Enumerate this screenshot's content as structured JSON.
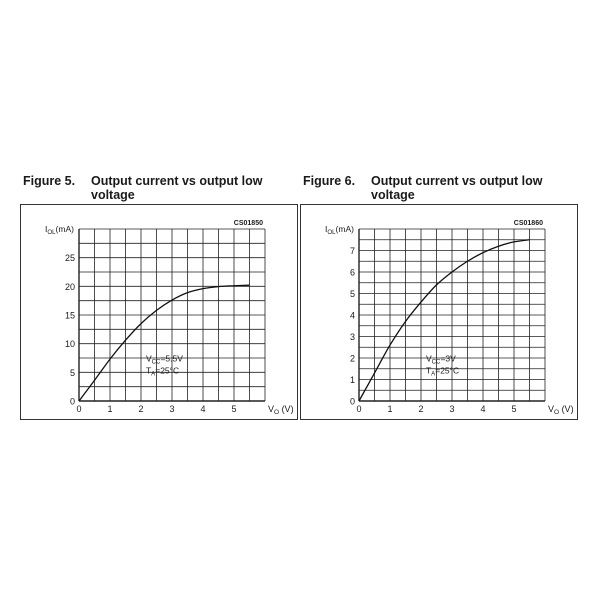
{
  "figures": [
    {
      "number": "Figure 5.",
      "title": "Output current vs output low voltage"
    },
    {
      "number": "Figure 6.",
      "title": "Output current vs output low voltage"
    }
  ],
  "chart_data": [
    {
      "type": "line",
      "code": "CS01850",
      "ylabel_main": "I",
      "ylabel_sub": "OL",
      "ylabel_unit": "(mA)",
      "xlabel_main": "V",
      "xlabel_sub": "O",
      "xlabel_unit": " (V)",
      "xlim": [
        0,
        6
      ],
      "ylim": [
        0,
        30
      ],
      "xticks": [
        "0",
        "1",
        "2",
        "3",
        "4",
        "5"
      ],
      "yticks": [
        "0",
        "5",
        "10",
        "15",
        "20",
        "25"
      ],
      "annotation": [
        {
          "main": "V",
          "sub": "CC",
          "rest": "=5.5V"
        },
        {
          "main": "T",
          "sub": "A",
          "rest": "=25°C"
        }
      ],
      "series": [
        {
          "x": [
            0,
            0.5,
            1,
            1.5,
            2,
            2.5,
            3,
            3.5,
            4,
            4.5,
            5,
            5.5
          ],
          "y": [
            0,
            3.6,
            7.3,
            10.6,
            13.5,
            15.8,
            17.6,
            18.9,
            19.6,
            19.95,
            20.1,
            20.2
          ]
        }
      ]
    },
    {
      "type": "line",
      "code": "CS01860",
      "ylabel_main": "I",
      "ylabel_sub": "OL",
      "ylabel_unit": "(mA)",
      "xlabel_main": "V",
      "xlabel_sub": "O",
      "xlabel_unit": " (V)",
      "xlim": [
        0,
        6
      ],
      "ylim": [
        0,
        8
      ],
      "xticks": [
        "0",
        "1",
        "2",
        "3",
        "4",
        "5"
      ],
      "yticks": [
        "0",
        "1",
        "2",
        "3",
        "4",
        "5",
        "6",
        "7"
      ],
      "annotation": [
        {
          "main": "V",
          "sub": "CC",
          "rest": "=3V"
        },
        {
          "main": "T",
          "sub": "A",
          "rest": "=25°C"
        }
      ],
      "series": [
        {
          "x": [
            0,
            0.5,
            1,
            1.5,
            2,
            2.5,
            3,
            3.5,
            4,
            4.5,
            5,
            5.5
          ],
          "y": [
            0,
            1.3,
            2.6,
            3.7,
            4.6,
            5.4,
            6.0,
            6.5,
            6.9,
            7.2,
            7.4,
            7.5
          ]
        }
      ]
    }
  ]
}
